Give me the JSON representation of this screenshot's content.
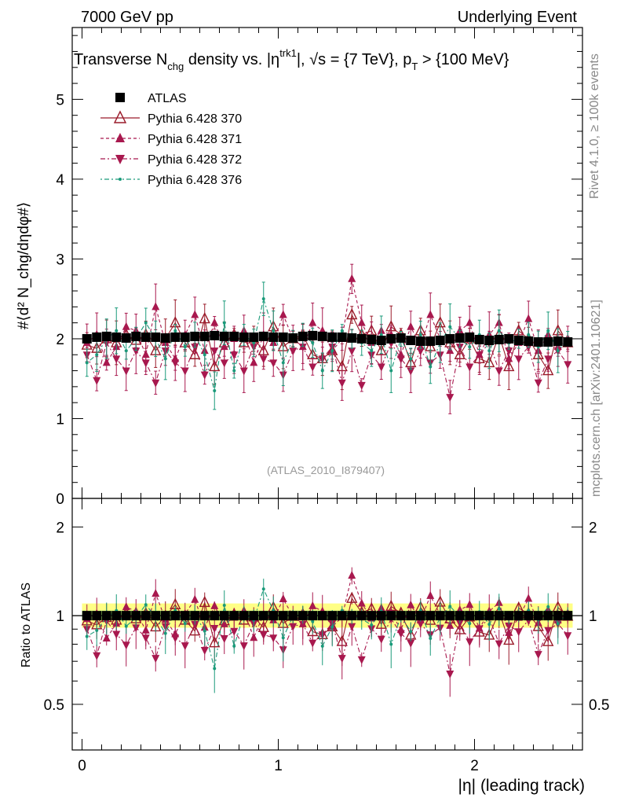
{
  "header": {
    "left": "7000 GeV pp",
    "right": "Underlying Event"
  },
  "side": {
    "rivet": "Rivet 4.1.0, ≥ 100k events",
    "mcplots": "mcplots.cern.ch [arXiv:2401.10621]"
  },
  "chart_data": {
    "type": "scatter",
    "title": {
      "pre": "Transverse N",
      "sub1": "chg",
      "mid": " density vs. |η",
      "sup1": "trk1",
      "post": "|, √s = {7 TeV}, p",
      "sub2": "T",
      "tail": " > {100 MeV}"
    },
    "watermark": "(ATLAS_2010_I879407)",
    "xlabel": "|η| (leading track)",
    "ylabel": "#⟨d² N_chg/dηdφ#⟩",
    "ratio_ylabel": "Ratio to ATLAS",
    "xlim": [
      -0.05,
      2.55
    ],
    "ylim": [
      0,
      5.9
    ],
    "ratio_ylim": [
      0.35,
      2.5
    ],
    "x_ticks": [
      "0",
      "1",
      "2"
    ],
    "y_ticks": [
      "0",
      "1",
      "2",
      "3",
      "4",
      "5"
    ],
    "ratio_ticks": [
      "0.5",
      "1",
      "2"
    ],
    "legend": [
      {
        "name": "ATLAS",
        "color": "#000000",
        "marker": "square",
        "dash": ""
      },
      {
        "name": "Pythia 6.428 370",
        "color": "#9a1b2a",
        "marker": "triangle-open",
        "dash": ""
      },
      {
        "name": "Pythia 6.428 371",
        "color": "#a8184e",
        "marker": "triangle-up",
        "dash": "4,3"
      },
      {
        "name": "Pythia 6.428 372",
        "color": "#a8184e",
        "marker": "triangle-down",
        "dash": "6,3,2,3"
      },
      {
        "name": "Pythia 6.428 376",
        "color": "#1a9a7a",
        "marker": "dot",
        "dash": "2,3,6,3"
      }
    ],
    "x": [
      0.025,
      0.075,
      0.125,
      0.175,
      0.225,
      0.275,
      0.325,
      0.375,
      0.425,
      0.475,
      0.525,
      0.575,
      0.625,
      0.675,
      0.725,
      0.775,
      0.825,
      0.875,
      0.925,
      0.975,
      1.025,
      1.075,
      1.125,
      1.175,
      1.225,
      1.275,
      1.325,
      1.375,
      1.425,
      1.475,
      1.525,
      1.575,
      1.625,
      1.675,
      1.725,
      1.775,
      1.825,
      1.875,
      1.925,
      1.975,
      2.025,
      2.075,
      2.125,
      2.175,
      2.225,
      2.275,
      2.325,
      2.375,
      2.425,
      2.475
    ],
    "series": [
      {
        "name": "ATLAS",
        "values": [
          2.0,
          2.02,
          2.03,
          2.02,
          2.01,
          2.03,
          2.02,
          2.02,
          2.01,
          2.02,
          2.02,
          2.03,
          2.03,
          2.04,
          2.03,
          2.03,
          2.02,
          2.02,
          2.03,
          2.02,
          2.02,
          2.01,
          2.03,
          2.04,
          2.03,
          2.02,
          2.02,
          2.01,
          2.0,
          1.99,
          1.98,
          2.0,
          2.01,
          1.98,
          1.97,
          1.97,
          1.98,
          2.0,
          2.01,
          2.02,
          1.99,
          1.98,
          1.99,
          2.0,
          1.98,
          1.97,
          1.96,
          1.96,
          1.97,
          1.96
        ]
      },
      {
        "name": "Pythia 6.428 370",
        "values": [
          1.92,
          1.88,
          2.0,
          1.95,
          2.05,
          1.98,
          2.05,
          1.85,
          2.0,
          2.2,
          1.95,
          1.8,
          2.25,
          1.65,
          1.95,
          2.05,
          1.95,
          2.0,
          1.85,
          2.15,
          1.9,
          2.0,
          2.05,
          1.8,
          1.75,
          1.85,
          1.65,
          2.3,
          2.05,
          2.1,
          1.85,
          2.15,
          2.05,
          1.7,
          2.1,
          1.9,
          2.2,
          1.95,
          1.8,
          2.0,
          1.75,
          1.7,
          2.05,
          1.65,
          2.1,
          2.0,
          1.8,
          1.6,
          2.1,
          1.95
        ]
      },
      {
        "name": "Pythia 6.428 371",
        "values": [
          1.95,
          2.05,
          1.7,
          1.9,
          2.15,
          2.1,
          1.8,
          2.4,
          1.95,
          1.75,
          2.05,
          2.3,
          1.85,
          2.2,
          1.9,
          2.0,
          2.1,
          1.7,
          2.05,
          1.95,
          2.3,
          2.0,
          1.9,
          2.2,
          2.1,
          1.85,
          2.0,
          2.75,
          2.2,
          1.95,
          2.1,
          2.05,
          1.8,
          2.15,
          1.9,
          2.3,
          2.0,
          1.85,
          2.1,
          2.2,
          1.8,
          2.05,
          2.2,
          1.75,
          1.95,
          2.25,
          1.85,
          2.05,
          1.9,
          2.0
        ]
      },
      {
        "name": "Pythia 6.428 372",
        "values": [
          1.8,
          1.48,
          1.95,
          1.75,
          1.6,
          1.85,
          1.7,
          1.45,
          1.85,
          1.7,
          1.6,
          1.9,
          1.55,
          1.85,
          1.7,
          1.8,
          1.6,
          1.9,
          1.75,
          1.7,
          1.55,
          1.85,
          1.9,
          1.65,
          1.75,
          1.9,
          1.45,
          1.85,
          1.42,
          1.8,
          1.65,
          1.95,
          1.75,
          1.6,
          1.85,
          1.7,
          1.8,
          1.27,
          1.9,
          1.65,
          1.8,
          1.95,
          1.6,
          1.85,
          1.75,
          1.9,
          1.45,
          1.75,
          1.85,
          1.68
        ]
      },
      {
        "name": "Pythia 6.428 376",
        "values": [
          1.7,
          1.8,
          2.0,
          2.1,
          1.85,
          2.0,
          2.2,
          2.0,
          1.75,
          2.1,
          1.9,
          2.05,
          1.8,
          1.35,
          2.2,
          1.6,
          2.05,
          1.95,
          2.5,
          2.1,
          1.7,
          2.0,
          2.05,
          1.95,
          1.6,
          1.85,
          2.1,
          2.0,
          1.95,
          1.85,
          2.05,
          1.6,
          2.0,
          1.75,
          2.05,
          1.65,
          1.95,
          2.15,
          2.0,
          1.9,
          2.05,
          1.85,
          2.1,
          1.95,
          2.0,
          2.05,
          1.9,
          2.1,
          1.85,
          2.0
        ]
      }
    ]
  }
}
